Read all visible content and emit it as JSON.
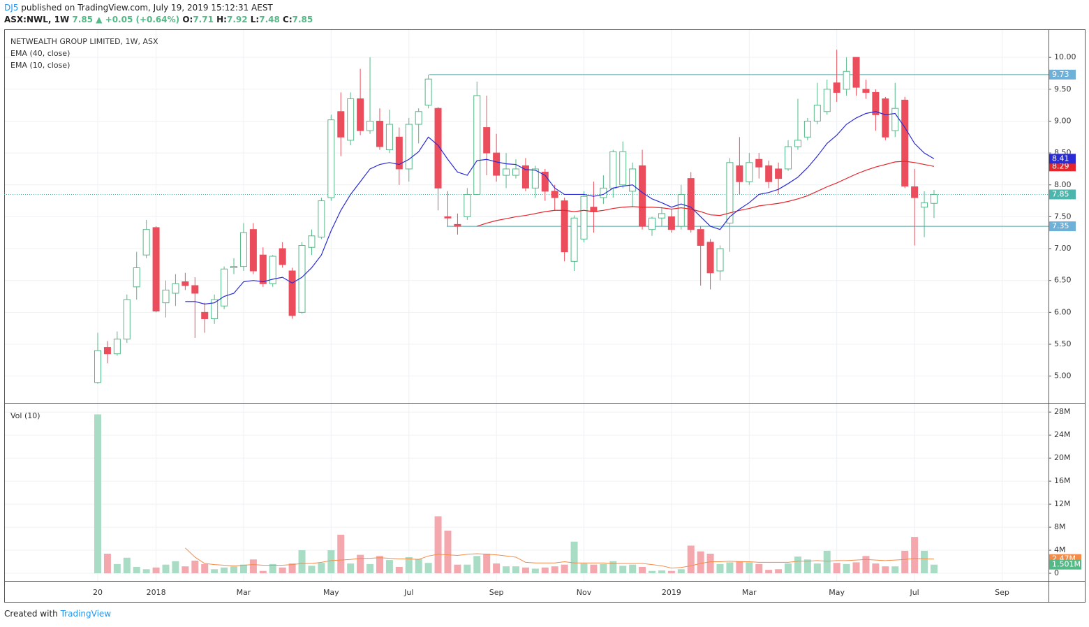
{
  "header": {
    "author": "DJ5",
    "published": "published on TradingView.com, July 19, 2019 15:12:31 AEST",
    "symbol": "ASX:NWL, 1W",
    "last": "7.85",
    "arrow": "▲",
    "change": "+0.05 (+0.64%)",
    "ohlc": [
      {
        "label": "O:",
        "value": "7.71"
      },
      {
        "label": "H:",
        "value": "7.92"
      },
      {
        "label": "L:",
        "value": "7.48"
      },
      {
        "label": "C:",
        "value": "7.85"
      }
    ]
  },
  "footer": {
    "created": "Created with",
    "brand": "TradingView"
  },
  "chart_data": [
    {
      "type": "candlestick",
      "title": "NETWEALTH GROUP LIMITED, 1W, ASX",
      "up_color": "#53b987",
      "down_color": "#eb4d5c",
      "grid": true,
      "ylim": [
        4.58,
        10.44
      ],
      "yticks": [
        {
          "value": 5,
          "label": "5.00"
        },
        {
          "value": 5.5,
          "label": "5.50"
        },
        {
          "value": 6,
          "label": "6.00"
        },
        {
          "value": 6.5,
          "label": "6.50"
        },
        {
          "value": 7,
          "label": "7.00"
        },
        {
          "value": 7.5,
          "label": "7.50"
        },
        {
          "value": 8,
          "label": "8.00"
        },
        {
          "value": 8.5,
          "label": "8.50"
        },
        {
          "value": 9,
          "label": "9.00"
        },
        {
          "value": 9.5,
          "label": "9.50"
        },
        {
          "value": 10,
          "label": "10.00"
        }
      ],
      "open": [
        4.9,
        5.45,
        5.35,
        5.58,
        6.4,
        6.9,
        7.33,
        6.15,
        6.3,
        6.48,
        6.42,
        6.0,
        5.9,
        6.1,
        6.7,
        6.72,
        7.3,
        6.9,
        6.45,
        7.0,
        6.65,
        6.0,
        7.02,
        7.18,
        7.8,
        9.15,
        8.7,
        9.35,
        8.85,
        9.0,
        8.55,
        8.75,
        8.25,
        8.95,
        9.25,
        9.2,
        7.5,
        7.38,
        7.5,
        7.85,
        8.9,
        8.5,
        8.15,
        8.15,
        8.3,
        7.95,
        8.2,
        7.9,
        7.75,
        6.8,
        7.15,
        7.65,
        7.8,
        7.95,
        8.0,
        7.9,
        8.3,
        7.3,
        7.48,
        7.5,
        7.35,
        8.1,
        7.3,
        7.1,
        6.65,
        7.4,
        8.3,
        8.05,
        8.4,
        8.3,
        8.25,
        8.25,
        8.6,
        8.75,
        9.0,
        9.15,
        9.6,
        9.5,
        10.0,
        9.5,
        9.45,
        9.35,
        8.85,
        9.33,
        7.97,
        7.65,
        7.71,
        null,
        null,
        null,
        null,
        null,
        null,
        null
      ],
      "high": [
        5.68,
        5.55,
        5.7,
        6.28,
        6.95,
        7.45,
        7.35,
        6.5,
        6.6,
        6.62,
        6.55,
        6.15,
        6.28,
        6.72,
        6.85,
        7.4,
        7.4,
        7.02,
        6.9,
        7.1,
        6.7,
        7.1,
        7.3,
        7.8,
        9.1,
        9.45,
        9.45,
        9.82,
        10.0,
        9.2,
        9.18,
        8.9,
        9.05,
        9.2,
        9.73,
        9.22,
        7.9,
        7.55,
        7.95,
        9.62,
        9.4,
        8.8,
        8.5,
        8.4,
        8.42,
        8.3,
        8.25,
        8.0,
        7.8,
        7.52,
        7.9,
        8.05,
        8.15,
        8.55,
        8.68,
        8.35,
        8.55,
        7.5,
        7.65,
        7.62,
        8.0,
        8.2,
        7.35,
        7.15,
        7.05,
        8.42,
        8.75,
        8.5,
        8.5,
        8.38,
        8.35,
        8.7,
        9.35,
        9.05,
        9.6,
        9.65,
        10.12,
        10.0,
        10.0,
        9.65,
        9.5,
        9.38,
        9.6,
        9.38,
        8.25,
        7.9,
        7.92,
        null,
        null,
        null,
        null,
        null,
        null,
        null
      ],
      "low": [
        4.88,
        5.2,
        5.32,
        5.52,
        6.2,
        6.85,
        6.0,
        5.92,
        6.1,
        6.35,
        5.6,
        5.68,
        5.82,
        6.05,
        6.6,
        6.65,
        6.6,
        6.4,
        6.4,
        6.7,
        5.9,
        5.98,
        6.9,
        7.15,
        7.75,
        8.45,
        8.62,
        8.78,
        8.8,
        8.55,
        8.5,
        8.0,
        8.05,
        8.65,
        9.2,
        7.6,
        7.35,
        7.22,
        7.45,
        7.85,
        8.15,
        8.05,
        7.95,
        8.1,
        7.9,
        7.8,
        7.75,
        7.6,
        6.8,
        6.65,
        7.1,
        7.25,
        7.7,
        7.8,
        7.95,
        7.65,
        7.3,
        7.2,
        7.35,
        7.25,
        7.3,
        7.25,
        6.42,
        6.36,
        6.5,
        6.95,
        7.85,
        8.0,
        8.1,
        7.95,
        7.85,
        8.22,
        8.55,
        8.7,
        8.95,
        9.1,
        9.3,
        9.4,
        9.4,
        9.35,
        8.85,
        8.7,
        8.75,
        7.95,
        7.05,
        7.18,
        7.48,
        null,
        null,
        null,
        null,
        null,
        null,
        null
      ],
      "close": [
        5.4,
        5.35,
        5.58,
        6.2,
        6.7,
        7.3,
        6.02,
        6.35,
        6.45,
        6.42,
        6.3,
        5.9,
        6.2,
        6.68,
        6.72,
        7.25,
        6.65,
        6.45,
        6.88,
        6.75,
        5.95,
        7.05,
        7.2,
        7.75,
        9.02,
        8.75,
        9.35,
        8.85,
        9.0,
        8.6,
        8.95,
        8.25,
        8.95,
        9.15,
        9.66,
        7.95,
        7.48,
        7.35,
        7.85,
        9.4,
        8.5,
        8.15,
        8.25,
        8.25,
        7.95,
        8.25,
        7.9,
        7.8,
        6.95,
        7.48,
        7.82,
        7.58,
        7.95,
        8.52,
        8.52,
        8.25,
        7.35,
        7.48,
        7.55,
        7.3,
        7.85,
        7.3,
        7.05,
        6.62,
        7.0,
        8.35,
        8.05,
        8.35,
        8.28,
        8.05,
        8.1,
        8.6,
        8.7,
        9.0,
        9.25,
        9.5,
        9.45,
        9.78,
        9.53,
        9.45,
        9.1,
        8.75,
        9.2,
        7.98,
        7.8,
        7.72,
        7.85,
        null,
        null,
        null,
        null,
        null,
        null,
        null
      ],
      "series": [
        {
          "name": "EMA (40, close)",
          "color": "#e5242b",
          "values": [
            null,
            null,
            null,
            null,
            null,
            null,
            null,
            null,
            null,
            null,
            null,
            null,
            null,
            null,
            null,
            null,
            null,
            null,
            null,
            null,
            null,
            null,
            null,
            null,
            null,
            null,
            null,
            null,
            null,
            null,
            null,
            null,
            null,
            null,
            null,
            null,
            null,
            null,
            null,
            7.35,
            7.4,
            7.44,
            7.47,
            7.5,
            7.52,
            7.55,
            7.58,
            7.6,
            7.6,
            7.58,
            7.6,
            7.58,
            7.6,
            7.63,
            7.65,
            7.66,
            7.65,
            7.65,
            7.64,
            7.62,
            7.64,
            7.62,
            7.58,
            7.53,
            7.52,
            7.56,
            7.6,
            7.63,
            7.67,
            7.69,
            7.71,
            7.74,
            7.78,
            7.83,
            7.9,
            7.97,
            8.03,
            8.1,
            8.17,
            8.23,
            8.28,
            8.32,
            8.36,
            8.37,
            8.35,
            8.32,
            8.29,
            null,
            null,
            null,
            null,
            null,
            null,
            null
          ]
        },
        {
          "name": "EMA (10, close)",
          "color": "#2a2ad6",
          "values": [
            null,
            null,
            null,
            null,
            null,
            null,
            null,
            null,
            null,
            6.17,
            6.17,
            6.13,
            6.15,
            6.25,
            6.3,
            6.48,
            6.5,
            6.48,
            6.52,
            6.55,
            6.46,
            6.55,
            6.7,
            6.9,
            7.28,
            7.6,
            7.85,
            8.05,
            8.25,
            8.32,
            8.35,
            8.32,
            8.4,
            8.52,
            8.75,
            8.62,
            8.4,
            8.2,
            8.15,
            8.38,
            8.4,
            8.36,
            8.33,
            8.32,
            8.24,
            8.23,
            8.15,
            7.95,
            7.85,
            7.85,
            7.85,
            7.82,
            7.85,
            7.95,
            7.98,
            8.0,
            7.88,
            7.78,
            7.72,
            7.65,
            7.7,
            7.65,
            7.5,
            7.35,
            7.3,
            7.5,
            7.62,
            7.72,
            7.85,
            7.88,
            7.93,
            8.02,
            8.12,
            8.27,
            8.45,
            8.65,
            8.78,
            8.95,
            9.05,
            9.12,
            9.15,
            9.1,
            9.12,
            8.9,
            8.65,
            8.5,
            8.41,
            null,
            null,
            null,
            null,
            null,
            null,
            null
          ]
        }
      ],
      "hlines": [
        {
          "value": 9.73,
          "color": "#4ea3a8",
          "label_color": "#6fb0d8"
        },
        {
          "value": 7.35,
          "color": "#4ea3a8",
          "label_color": "#6fb0d8"
        }
      ],
      "last_color": "#4db6ac"
    },
    {
      "type": "bar",
      "title": "Vol (10)",
      "up_color": "#a8dcc5",
      "down_color": "#f4a7ad",
      "grid": true,
      "categories": [
        "20",
        null,
        null,
        null,
        null,
        null,
        "2018",
        null,
        null,
        null,
        null,
        null,
        null,
        null,
        null,
        "Mar",
        null,
        null,
        null,
        null,
        null,
        null,
        null,
        null,
        "May",
        null,
        null,
        null,
        null,
        null,
        null,
        null,
        "Jul",
        null,
        null,
        null,
        null,
        null,
        null,
        null,
        null,
        "Sep",
        null,
        null,
        null,
        null,
        null,
        null,
        null,
        null,
        "Nov",
        null,
        null,
        null,
        null,
        null,
        null,
        null,
        null,
        "2019",
        null,
        null,
        null,
        null,
        null,
        null,
        null,
        "Mar",
        null,
        null,
        null,
        null,
        null,
        null,
        null,
        null,
        "May",
        null,
        null,
        null,
        null,
        null,
        null,
        null,
        "Jul",
        null,
        null,
        null,
        null,
        null,
        null,
        null,
        null,
        "Sep"
      ],
      "ylim": [
        -1.33,
        29.6
      ],
      "yticks": [
        0,
        {
          "value": 4,
          "label": "4M"
        },
        {
          "value": 8,
          "label": "8M"
        },
        {
          "value": 12,
          "label": "12M"
        },
        {
          "value": 16,
          "label": "16M"
        },
        {
          "value": 20,
          "label": "20M"
        },
        {
          "value": 24,
          "label": "24M"
        },
        {
          "value": 28,
          "label": "28M"
        }
      ],
      "values": [
        27.6,
        3.4,
        1.6,
        2.7,
        1.1,
        0.7,
        1.0,
        1.5,
        2.1,
        1.2,
        2.2,
        1.6,
        0.7,
        1.0,
        1.2,
        1.5,
        2.4,
        0.4,
        1.6,
        1.0,
        1.7,
        4.0,
        1.3,
        1.8,
        4.0,
        6.7,
        1.7,
        3.2,
        1.6,
        3.0,
        2.3,
        1.1,
        2.8,
        2.5,
        1.8,
        9.9,
        7.4,
        1.5,
        1.5,
        3.0,
        3.4,
        1.7,
        1.2,
        1.2,
        1.0,
        0.8,
        1.0,
        1.2,
        1.5,
        5.5,
        1.7,
        1.5,
        1.6,
        2.1,
        1.3,
        1.5,
        1.1,
        0.4,
        0.5,
        0.4,
        0.7,
        4.8,
        3.8,
        3.4,
        1.6,
        1.9,
        2.1,
        1.9,
        1.6,
        0.6,
        0.7,
        1.7,
        2.9,
        2.4,
        1.7,
        3.9,
        1.8,
        1.6,
        1.9,
        3.0,
        1.7,
        1.2,
        1.2,
        3.9,
        6.3,
        3.9,
        1.501,
        null,
        null,
        null,
        null,
        null,
        null,
        null
      ],
      "ma": {
        "color": "#f58b48",
        "values": [
          null,
          null,
          null,
          null,
          null,
          null,
          null,
          null,
          null,
          4.4,
          2.8,
          1.7,
          1.5,
          1.4,
          1.3,
          1.4,
          1.5,
          1.4,
          1.4,
          1.4,
          1.5,
          1.7,
          1.7,
          1.9,
          2.2,
          2.3,
          2.4,
          2.6,
          2.6,
          2.7,
          2.6,
          2.5,
          2.5,
          2.4,
          3.0,
          3.3,
          3.2,
          3.1,
          3.3,
          3.4,
          3.3,
          3.2,
          3.0,
          2.8,
          1.9,
          1.8,
          1.8,
          1.8,
          2.0,
          1.8,
          1.8,
          1.8,
          1.8,
          1.7,
          1.7,
          1.7,
          1.7,
          1.5,
          1.3,
          0.9,
          1.0,
          1.3,
          1.7,
          2.0,
          2.0,
          2.1,
          2.0,
          2.0,
          1.9,
          1.9,
          1.9,
          1.9,
          2.1,
          2.1,
          2.2,
          2.1,
          2.2,
          2.2,
          2.3,
          2.4,
          2.3,
          2.2,
          2.3,
          2.4,
          2.6,
          2.5,
          2.47,
          null,
          null,
          null,
          null,
          null,
          null,
          null
        ]
      },
      "current_labels": [
        {
          "value": 2.47,
          "label": "2.47M",
          "color": "#f58b48"
        },
        {
          "value": 1.501,
          "label": "1.501M",
          "color": "#53b987"
        }
      ]
    }
  ]
}
